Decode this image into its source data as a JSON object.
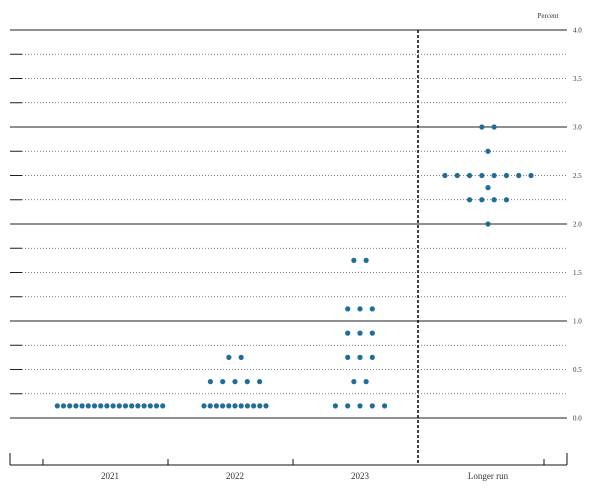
{
  "chart_data": {
    "type": "scatter",
    "subtype": "dot-plot",
    "unit_label": "Percent",
    "categories": [
      "2021",
      "2022",
      "2023",
      "Longer run"
    ],
    "ylim": [
      -0.125,
      4.0
    ],
    "yticks": [
      "0.0",
      "0.5",
      "1.0",
      "1.5",
      "2.0",
      "2.5",
      "3.0",
      "3.5",
      "4.0"
    ],
    "ytick_values": [
      0,
      0.5,
      1.0,
      1.5,
      2.0,
      2.5,
      3.0,
      3.5,
      4.0
    ],
    "gridlines_every": 0.25,
    "grid": true,
    "separator_before_category": "Longer run",
    "dot_color": "#1f6e9a",
    "series": [
      {
        "category": "2021",
        "levels": [
          {
            "y": 0.125,
            "count": 18
          }
        ]
      },
      {
        "category": "2022",
        "levels": [
          {
            "y": 0.125,
            "count": 11
          },
          {
            "y": 0.375,
            "count": 5
          },
          {
            "y": 0.625,
            "count": 2
          }
        ]
      },
      {
        "category": "2023",
        "levels": [
          {
            "y": 0.125,
            "count": 5
          },
          {
            "y": 0.375,
            "count": 2
          },
          {
            "y": 0.625,
            "count": 3
          },
          {
            "y": 0.875,
            "count": 3
          },
          {
            "y": 1.125,
            "count": 3
          },
          {
            "y": 1.625,
            "count": 2
          }
        ]
      },
      {
        "category": "Longer run",
        "levels": [
          {
            "y": 2.0,
            "count": 1
          },
          {
            "y": 2.25,
            "count": 4
          },
          {
            "y": 2.375,
            "count": 1
          },
          {
            "y": 2.5,
            "count": 8
          },
          {
            "y": 2.75,
            "count": 1
          },
          {
            "y": 3.0,
            "count": 2
          }
        ]
      }
    ]
  }
}
